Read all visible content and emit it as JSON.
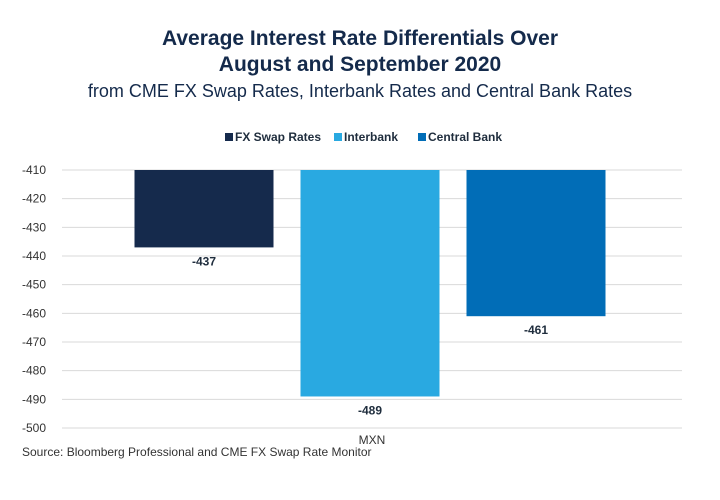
{
  "chart_data": {
    "type": "bar",
    "title_line1": "Average Interest Rate Differentials Over",
    "title_line2": "August and September 2020",
    "subtitle": "from CME FX Swap Rates, Interbank Rates and Central Bank Rates",
    "categories": [
      "MXN"
    ],
    "series": [
      {
        "name": "FX Swap Rates",
        "values": [
          -437
        ],
        "color": "#152a4c",
        "label": "-437"
      },
      {
        "name": "Interbank",
        "values": [
          -489
        ],
        "color": "#29a9e1",
        "label": "-489"
      },
      {
        "name": "Central Bank",
        "values": [
          -461
        ],
        "color": "#016db7",
        "label": "-461"
      }
    ],
    "ylim": [
      -500,
      -410
    ],
    "yticks": [
      "-410",
      "-420",
      "-430",
      "-440",
      "-450",
      "-460",
      "-470",
      "-480",
      "-490",
      "-500"
    ],
    "grid": true,
    "legend_position": "top",
    "source": "Source: Bloomberg Professional and CME FX Swap Rate Monitor"
  }
}
